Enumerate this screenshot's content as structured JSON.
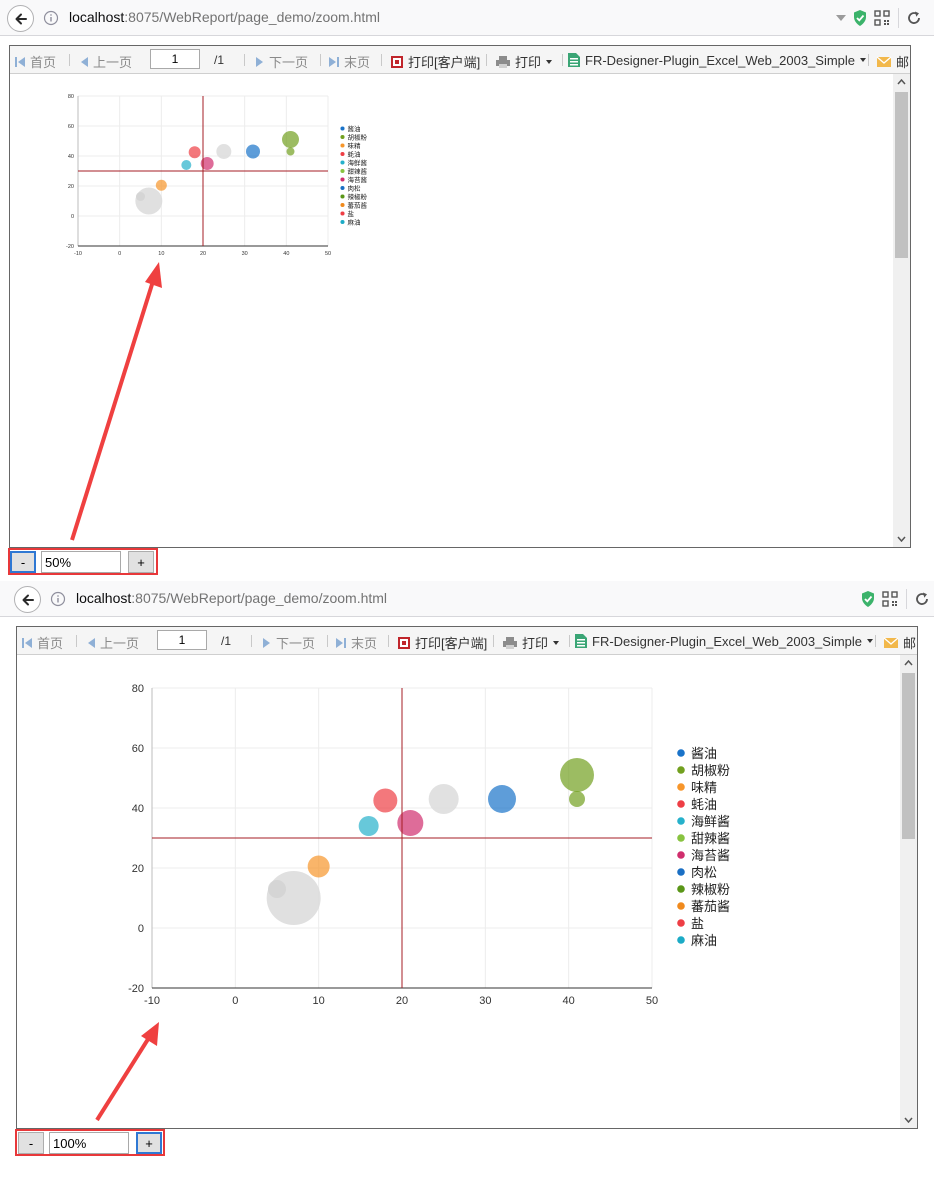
{
  "browser": {
    "url_host": "localhost",
    "url_rest": ":8075/WebReport/page_demo/zoom.html"
  },
  "toolbar": {
    "first_label": "首页",
    "prev_label": "上一页",
    "page_value": "1",
    "total_pages": "/1",
    "next_label": "下一页",
    "last_label": "末页",
    "print_client_label": "打印[客户端]",
    "print_label": "打印",
    "export_label": "FR-Designer-Plugin_Excel_Web_2003_Simple",
    "mail_label": "邮"
  },
  "zoom_top": {
    "minus": "-",
    "value": "50%",
    "plus": "+"
  },
  "zoom_bottom": {
    "minus": "-",
    "value": "100%",
    "plus": "+"
  },
  "chart_data": {
    "type": "scatter",
    "title": "",
    "xlabel": "",
    "ylabel": "",
    "xlim": [
      -10,
      50
    ],
    "ylim": [
      -20,
      80
    ],
    "x_ticks": [
      "-10",
      "0",
      "10",
      "20",
      "30",
      "40",
      "50"
    ],
    "y_ticks": [
      "80",
      "60",
      "40",
      "20",
      "0",
      "-20"
    ],
    "grid": true,
    "legend_position": "right",
    "reference_lines": {
      "x": 20,
      "y": 30,
      "color": "#a61c24"
    },
    "series": [
      {
        "name": "酱油",
        "color": "#1a73c9",
        "points": [
          {
            "x": 32,
            "y": 43,
            "size": 14
          }
        ]
      },
      {
        "name": "胡椒粉",
        "color": "#72a01f",
        "points": [
          {
            "x": 41,
            "y": 51,
            "size": 17
          },
          {
            "x": 41,
            "y": 43,
            "size": 8
          }
        ]
      },
      {
        "name": "味精",
        "color": "#f7962b",
        "points": [
          {
            "x": 10,
            "y": 20.5,
            "size": 11
          }
        ]
      },
      {
        "name": "蚝油",
        "color": "#ee3e45",
        "points": [
          {
            "x": 18,
            "y": 42.5,
            "size": 12
          }
        ]
      },
      {
        "name": "海鲜酱",
        "color": "#26b1cb",
        "points": [
          {
            "x": 16,
            "y": 34,
            "size": 10
          }
        ]
      },
      {
        "name": "甜辣酱",
        "color": "#88c340",
        "points": []
      },
      {
        "name": "海苔酱",
        "color": "#d02e6d",
        "points": [
          {
            "x": 21,
            "y": 35,
            "size": 13
          }
        ]
      },
      {
        "name": "肉松",
        "color": "#1a6fc4",
        "points": []
      },
      {
        "name": "辣椒粉",
        "color": "#5a9618",
        "points": []
      },
      {
        "name": "蕃茄酱",
        "color": "#f08a1d",
        "points": []
      },
      {
        "name": "盐",
        "color": "#ee3e45",
        "points": []
      },
      {
        "name": "麻油",
        "color": "#1cabc6",
        "points": []
      }
    ],
    "unlabeled_points": [
      {
        "x": 7,
        "y": 10,
        "size": 27,
        "color": "#dadada"
      },
      {
        "x": 5,
        "y": 13,
        "size": 9,
        "color": "#d2d2d2"
      },
      {
        "x": 25,
        "y": 43,
        "size": 15,
        "color": "#dcdcdc"
      }
    ]
  }
}
